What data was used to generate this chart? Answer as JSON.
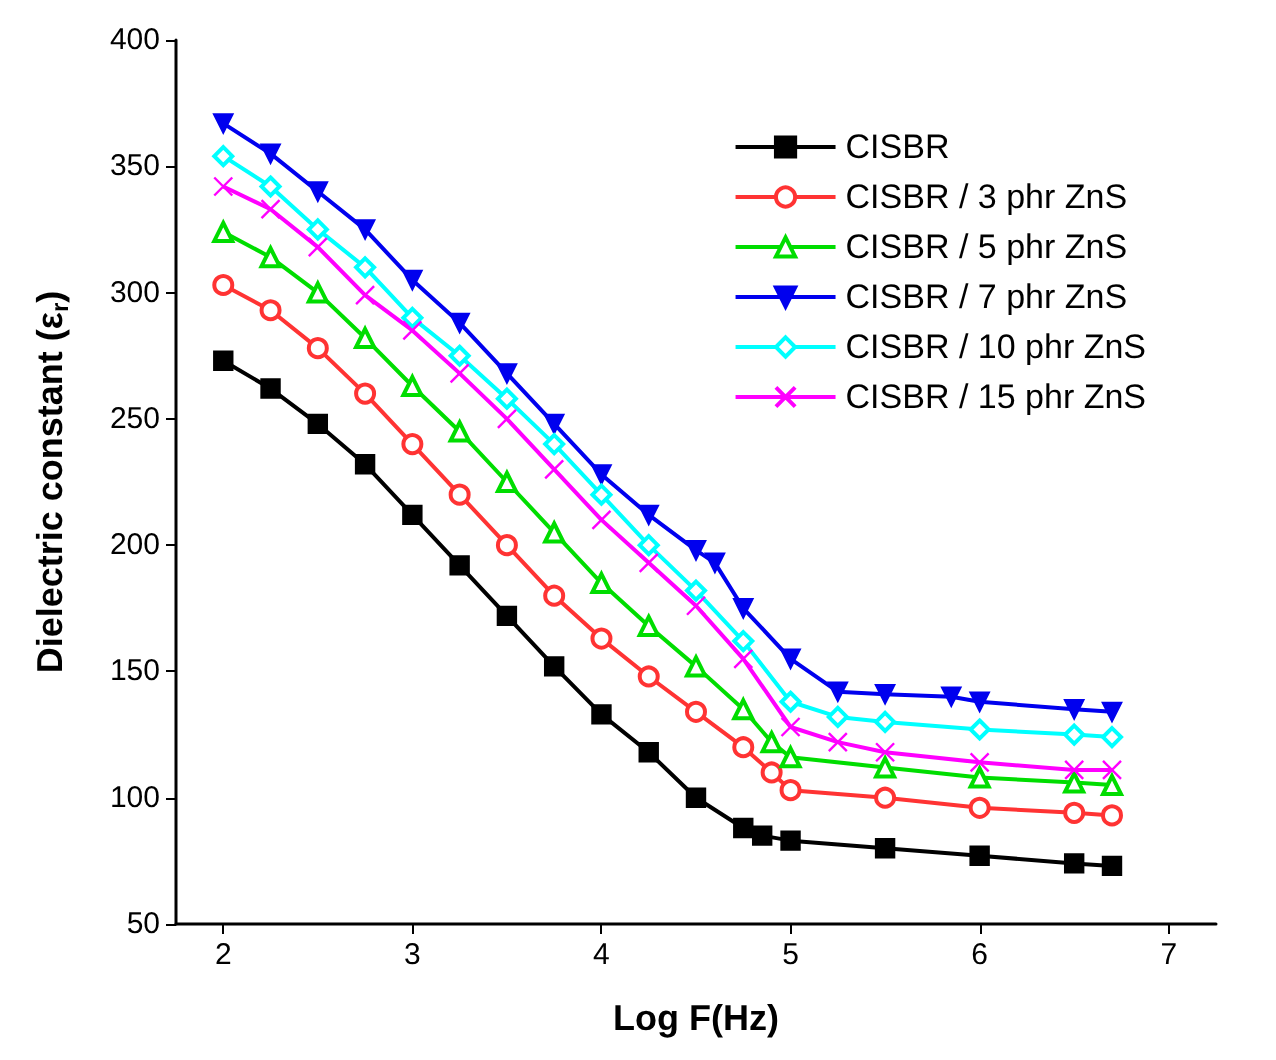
{
  "chart_data": {
    "type": "line",
    "xlabel": "Log F(Hz)",
    "ylabel": "Dielectric constant (ε$_{r}$)",
    "xlim": [
      1.75,
      7.25
    ],
    "xticks": [
      2,
      3,
      4,
      5,
      6,
      7
    ],
    "ylim": [
      50,
      400
    ],
    "yticks": [
      50,
      100,
      150,
      200,
      250,
      300,
      350,
      400
    ],
    "grid": false,
    "legend": "top right",
    "series": [
      {
        "name": "CISBR",
        "color": "#000000",
        "marker": "square",
        "x": [
          2,
          2.25,
          2.5,
          2.75,
          3,
          3.25,
          3.5,
          3.75,
          4,
          4.25,
          4.5,
          4.75,
          4.85,
          5,
          5.5,
          6,
          6.5,
          6.7
        ],
        "values": [
          273,
          262,
          248,
          232,
          212,
          192,
          172,
          152,
          133,
          118,
          100,
          88,
          85,
          83,
          80,
          77,
          74,
          73
        ]
      },
      {
        "name": "CISBR / 3 phr ZnS",
        "color": "#ff3333",
        "marker": "circle",
        "x": [
          2,
          2.25,
          2.5,
          2.75,
          3,
          3.25,
          3.5,
          3.75,
          4,
          4.25,
          4.5,
          4.75,
          4.9,
          5,
          5.5,
          6,
          6.5,
          6.7
        ],
        "values": [
          303,
          293,
          278,
          260,
          240,
          220,
          200,
          180,
          163,
          148,
          134,
          120,
          110,
          103,
          100,
          96,
          94,
          93
        ]
      },
      {
        "name": "CISBR / 5 phr ZnS",
        "color": "#00dd00",
        "marker": "triangle",
        "x": [
          2,
          2.25,
          2.5,
          2.75,
          3,
          3.25,
          3.5,
          3.75,
          4,
          4.25,
          4.5,
          4.75,
          4.9,
          5,
          5.5,
          6,
          6.5,
          6.7
        ],
        "values": [
          324,
          314,
          300,
          282,
          263,
          245,
          225,
          205,
          185,
          168,
          152,
          135,
          122,
          116,
          112,
          108,
          106,
          105
        ]
      },
      {
        "name": "CISBR / 7 phr ZnS",
        "color": "#0000ee",
        "marker": "triangle_down",
        "x": [
          2,
          2.25,
          2.5,
          2.75,
          3,
          3.25,
          3.5,
          3.75,
          4,
          4.25,
          4.5,
          4.6,
          4.75,
          5,
          5.25,
          5.5,
          5.85,
          6,
          6.5,
          6.7
        ],
        "values": [
          367,
          355,
          340,
          325,
          305,
          288,
          268,
          248,
          228,
          212,
          198,
          193,
          175,
          155,
          142,
          141,
          140,
          138,
          135,
          134
        ]
      },
      {
        "name": "CISBR / 10 phr ZnS",
        "color": "#00ffff",
        "marker": "diamond",
        "x": [
          2,
          2.25,
          2.5,
          2.75,
          3,
          3.25,
          3.5,
          3.75,
          4,
          4.25,
          4.5,
          4.75,
          5,
          5.25,
          5.5,
          6,
          6.5,
          6.7
        ],
        "values": [
          354,
          342,
          325,
          310,
          290,
          275,
          258,
          240,
          220,
          200,
          182,
          162,
          138,
          132,
          130,
          127,
          125,
          124
        ]
      },
      {
        "name": "CISBR / 15 phr ZnS",
        "color": "#ff00ff",
        "marker": "cross",
        "x": [
          2,
          2.25,
          2.5,
          2.75,
          3,
          3.25,
          3.5,
          3.75,
          4,
          4.25,
          4.5,
          4.75,
          5,
          5.25,
          5.5,
          6,
          6.5,
          6.7
        ],
        "values": [
          342,
          333,
          318,
          299,
          285,
          268,
          250,
          230,
          210,
          193,
          176,
          155,
          128,
          122,
          118,
          114,
          111,
          111
        ]
      }
    ]
  }
}
